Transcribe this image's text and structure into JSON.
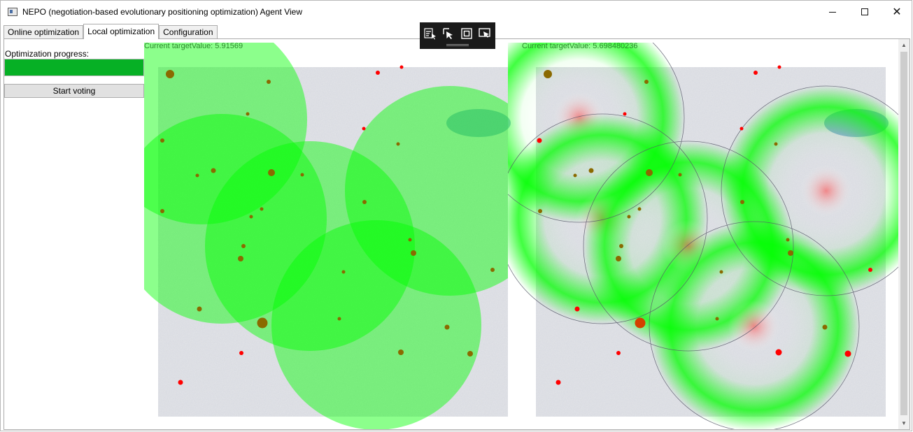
{
  "window": {
    "title": "NEPO (negotiation-based evolutionary positioning optimization) Agent View",
    "controls": [
      "minimize",
      "maximize",
      "close"
    ]
  },
  "tabs": [
    {
      "label": "Online optimization",
      "active": false
    },
    {
      "label": "Local optimization",
      "active": true
    },
    {
      "label": "Configuration",
      "active": false
    }
  ],
  "panel": {
    "progress_label": "Optimization progress:",
    "progress_fraction": 1.0,
    "progress_color": "#06b025",
    "vote_button_label": "Start voting"
  },
  "left_view": {
    "target_label": "Current targetValue: 5.91569"
  },
  "right_view": {
    "target_label": "Current targetValue: 5.698480236"
  },
  "floating_toolbar": {
    "icons": [
      "select-element-icon",
      "pointer-icon",
      "focus-frame-icon",
      "screen-select-icon"
    ]
  },
  "colors": {
    "coverage_green": "#00ff00",
    "red_point": "#ff0000",
    "agent_point": "#8a6a00",
    "label_green": "#2a8a2a"
  }
}
